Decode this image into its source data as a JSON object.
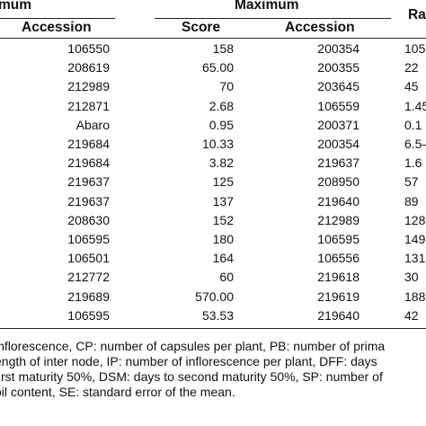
{
  "header": {
    "group_min": "mum",
    "group_max": "Maximum",
    "group_range": "Ra",
    "col_accession_min": "Accession",
    "col_score": "Score",
    "col_accession_max": "Accession"
  },
  "rows": [
    {
      "min_acc": "106550",
      "score": "158",
      "max_acc": "200354",
      "range": "105"
    },
    {
      "min_acc": "208619",
      "score": "65.00",
      "max_acc": "200355",
      "range": "22"
    },
    {
      "min_acc": "212989",
      "score": "70",
      "max_acc": "203645",
      "range": "45"
    },
    {
      "min_acc": "212871",
      "score": "2.68",
      "max_acc": "106559",
      "range": "1.45"
    },
    {
      "min_acc": "Abaro",
      "score": "0.95",
      "max_acc": "200371",
      "range": "0.1"
    },
    {
      "min_acc": "219684",
      "score": "10.33",
      "max_acc": "200354",
      "range": "6.5–"
    },
    {
      "min_acc": "219684",
      "score": "3.82",
      "max_acc": "219637",
      "range": "1.6"
    },
    {
      "min_acc": "219637",
      "score": "125",
      "max_acc": "208950",
      "range": "57"
    },
    {
      "min_acc": "219637",
      "score": "137",
      "max_acc": "219640",
      "range": "89"
    },
    {
      "min_acc": "208630",
      "score": "152",
      "max_acc": "212989",
      "range": "128"
    },
    {
      "min_acc": "106595",
      "score": "180",
      "max_acc": "106595",
      "range": "149"
    },
    {
      "min_acc": "106501",
      "score": "164",
      "max_acc": "106556",
      "range": "131"
    },
    {
      "min_acc": "212772",
      "score": "60",
      "max_acc": "219618",
      "range": "30"
    },
    {
      "min_acc": "219689",
      "score": "570.00",
      "max_acc": "219619",
      "range": "188"
    },
    {
      "min_acc": "106595",
      "score": "53.53",
      "max_acc": "219640",
      "range": "42"
    }
  ],
  "footnote": [
    "inflorescence, CP: number of capsules per plant, PB: number of prima",
    "ength of inter node, IP: number of  inflorescence per plant, DFF: days",
    "first maturity 50%, DSM: days to second maturity 50%, SP: number of",
    "oil content, SE: standard error of the mean."
  ]
}
